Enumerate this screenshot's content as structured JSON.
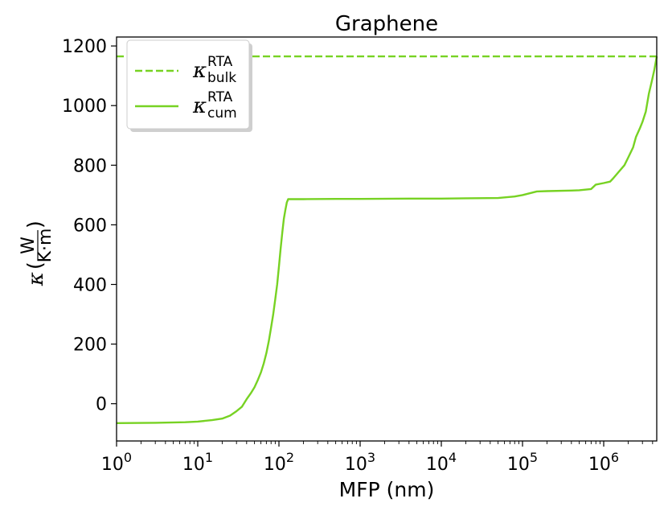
{
  "chart_data": {
    "type": "line",
    "title": "Graphene",
    "xlabel": "MFP (nm)",
    "ylabel": "κ",
    "ylabel_unit_num": "W",
    "ylabel_unit_den": "K·m",
    "x_scale": "log",
    "xlim": [
      1,
      4500000
    ],
    "ylim": [
      -125,
      1230
    ],
    "x_ticks": [
      {
        "value": 1,
        "base": "10",
        "exp": "0"
      },
      {
        "value": 10,
        "base": "10",
        "exp": "1"
      },
      {
        "value": 100,
        "base": "10",
        "exp": "2"
      },
      {
        "value": 1000,
        "base": "10",
        "exp": "3"
      },
      {
        "value": 10000,
        "base": "10",
        "exp": "4"
      },
      {
        "value": 100000,
        "base": "10",
        "exp": "5"
      },
      {
        "value": 1000000,
        "base": "10",
        "exp": "6"
      }
    ],
    "y_ticks": [
      0,
      200,
      400,
      600,
      800,
      1000,
      1200
    ],
    "grid": false,
    "legend_position": "top-left",
    "series": [
      {
        "name_main": "κ",
        "name_sup": "RTA",
        "name_sub": "bulk",
        "style": "dashed",
        "color": "#77d223",
        "x": [
          1,
          4500000
        ],
        "y": [
          1165,
          1165
        ]
      },
      {
        "name_main": "κ",
        "name_sup": "RTA",
        "name_sub": "cum",
        "style": "solid",
        "color": "#77d223",
        "x": [
          1,
          3,
          7,
          10,
          15,
          20,
          25,
          30,
          35,
          40,
          45,
          50,
          55,
          60,
          65,
          70,
          75,
          80,
          85,
          90,
          95,
          100,
          105,
          110,
          115,
          120,
          125,
          130,
          200,
          500,
          1000,
          5000,
          10000,
          20000,
          50000,
          80000,
          100000,
          150000,
          200000,
          400000,
          500000,
          700000,
          800000,
          1000000,
          1200000,
          1300000,
          1500000,
          1800000,
          2000000,
          2300000,
          2500000,
          2800000,
          3000000,
          3300000,
          3600000,
          3900000,
          4200000,
          4500000
        ],
        "y": [
          -65,
          -64,
          -62,
          -60,
          -55,
          -50,
          -40,
          -25,
          -10,
          15,
          35,
          55,
          80,
          105,
          135,
          170,
          210,
          255,
          300,
          350,
          400,
          460,
          520,
          575,
          620,
          650,
          675,
          686,
          686,
          687,
          687,
          688,
          688,
          689,
          690,
          695,
          700,
          712,
          713,
          715,
          716,
          720,
          735,
          740,
          745,
          755,
          775,
          800,
          825,
          860,
          895,
          925,
          945,
          980,
          1040,
          1080,
          1120,
          1165
        ]
      }
    ]
  }
}
